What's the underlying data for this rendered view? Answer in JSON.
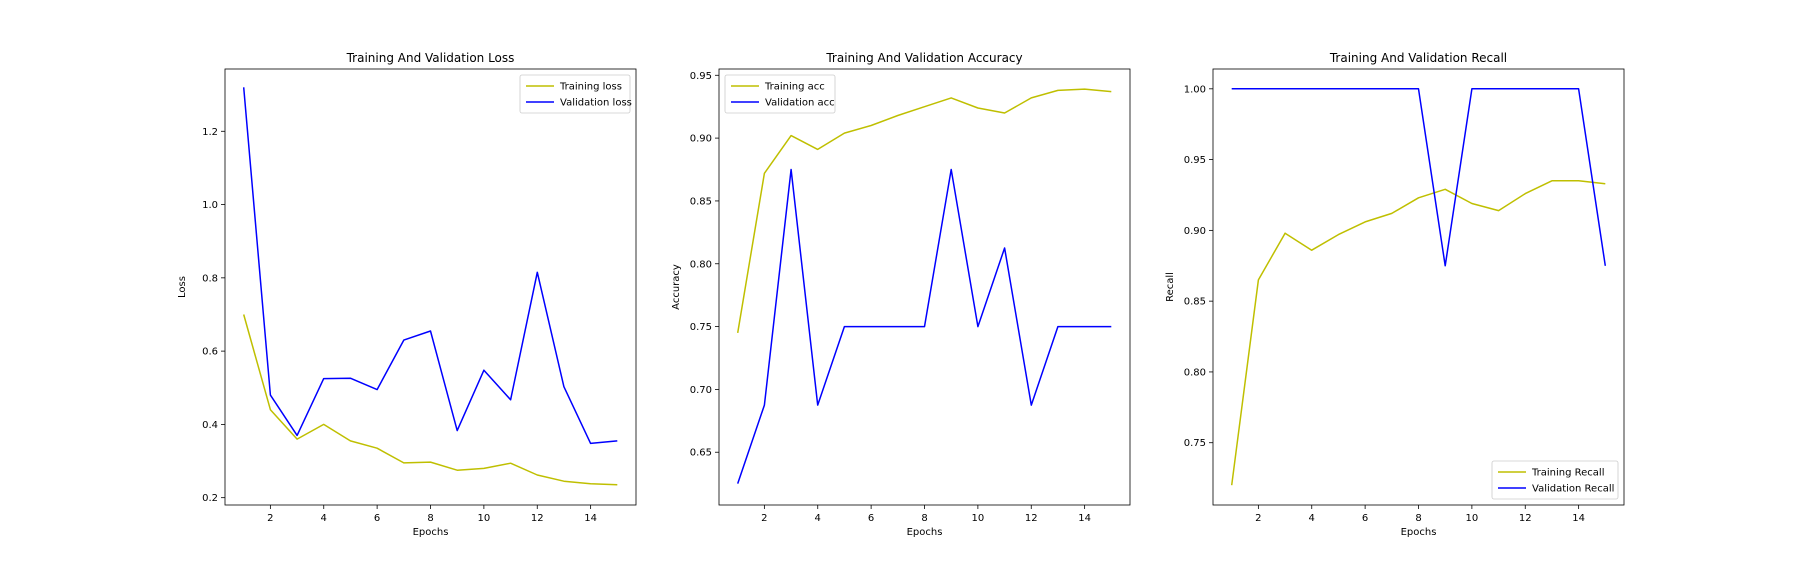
{
  "colors": {
    "training": "#bfbf00",
    "validation": "#0000ff"
  },
  "chart_data": [
    {
      "type": "line",
      "title": "Training And Validation Loss",
      "xlabel": "Epochs",
      "ylabel": "Loss",
      "xlim": [
        0.3,
        15.7
      ],
      "ylim": [
        0.18,
        1.37
      ],
      "xticks": [
        2,
        4,
        6,
        8,
        10,
        12,
        14
      ],
      "yticks": [
        0.2,
        0.4,
        0.6,
        0.8,
        1.0,
        1.2
      ],
      "ytick_labels": [
        "0.2",
        "0.4",
        "0.6",
        "0.8",
        "1.0",
        "1.2"
      ],
      "legend": "upper right",
      "grid": false,
      "x": [
        1,
        2,
        3,
        4,
        5,
        6,
        7,
        8,
        9,
        10,
        11,
        12,
        13,
        14,
        15
      ],
      "series": [
        {
          "name": "Training loss",
          "color_key": "training",
          "values": [
            0.7,
            0.44,
            0.36,
            0.4,
            0.355,
            0.335,
            0.295,
            0.297,
            0.275,
            0.28,
            0.294,
            0.262,
            0.245,
            0.238,
            0.235
          ]
        },
        {
          "name": "Validation loss",
          "color_key": "validation",
          "values": [
            1.32,
            0.48,
            0.37,
            0.525,
            0.526,
            0.495,
            0.63,
            0.655,
            0.383,
            0.548,
            0.467,
            0.815,
            0.503,
            0.348,
            0.355
          ]
        }
      ]
    },
    {
      "type": "line",
      "title": "Training And Validation Accuracy",
      "xlabel": "Epochs",
      "ylabel": "Accuracy",
      "xlim": [
        0.3,
        15.7
      ],
      "ylim": [
        0.608,
        0.955
      ],
      "xticks": [
        2,
        4,
        6,
        8,
        10,
        12,
        14
      ],
      "yticks": [
        0.65,
        0.7,
        0.75,
        0.8,
        0.85,
        0.9,
        0.95
      ],
      "ytick_labels": [
        "0.65",
        "0.70",
        "0.75",
        "0.80",
        "0.85",
        "0.90",
        "0.95"
      ],
      "legend": "upper left",
      "grid": false,
      "x": [
        1,
        2,
        3,
        4,
        5,
        6,
        7,
        8,
        9,
        10,
        11,
        12,
        13,
        14,
        15
      ],
      "series": [
        {
          "name": "Training acc",
          "color_key": "training",
          "values": [
            0.745,
            0.872,
            0.902,
            0.891,
            0.904,
            0.91,
            0.918,
            0.925,
            0.932,
            0.924,
            0.92,
            0.932,
            0.938,
            0.939,
            0.937
          ]
        },
        {
          "name": "Validation acc",
          "color_key": "validation",
          "values": [
            0.625,
            0.6875,
            0.875,
            0.6875,
            0.75,
            0.75,
            0.75,
            0.75,
            0.875,
            0.75,
            0.8125,
            0.6875,
            0.75,
            0.75,
            0.75
          ]
        }
      ]
    },
    {
      "type": "line",
      "title": "Training And Validation Recall",
      "xlabel": "Epochs",
      "ylabel": "Recall",
      "xlim": [
        0.3,
        15.7
      ],
      "ylim": [
        0.706,
        1.014
      ],
      "xticks": [
        2,
        4,
        6,
        8,
        10,
        12,
        14
      ],
      "yticks": [
        0.75,
        0.8,
        0.85,
        0.9,
        0.95,
        1.0
      ],
      "ytick_labels": [
        "0.75",
        "0.80",
        "0.85",
        "0.90",
        "0.95",
        "1.00"
      ],
      "legend": "lower right",
      "grid": false,
      "x": [
        1,
        2,
        3,
        4,
        5,
        6,
        7,
        8,
        9,
        10,
        11,
        12,
        13,
        14,
        15
      ],
      "series": [
        {
          "name": "Training Recall",
          "color_key": "training",
          "values": [
            0.72,
            0.865,
            0.898,
            0.886,
            0.897,
            0.906,
            0.912,
            0.923,
            0.929,
            0.919,
            0.914,
            0.926,
            0.935,
            0.935,
            0.933
          ]
        },
        {
          "name": "Validation Recall",
          "color_key": "validation",
          "values": [
            1.0,
            1.0,
            1.0,
            1.0,
            1.0,
            1.0,
            1.0,
            1.0,
            0.875,
            1.0,
            1.0,
            1.0,
            1.0,
            1.0,
            0.875
          ]
        }
      ]
    }
  ]
}
